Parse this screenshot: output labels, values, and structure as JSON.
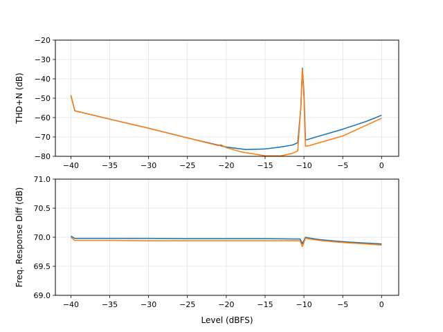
{
  "chart_data": [
    {
      "type": "line",
      "title": "",
      "xlabel": "",
      "ylabel": "THD+N (dB)",
      "xlim": [
        -42,
        2.2
      ],
      "ylim": [
        -80,
        -20
      ],
      "xticks": [
        -40,
        -35,
        -30,
        -25,
        -20,
        -15,
        -10,
        -5,
        0
      ],
      "yticks": [
        -80,
        -70,
        -60,
        -50,
        -40,
        -30,
        -20
      ],
      "xtick_labels": [
        "−40",
        "−35",
        "−30",
        "−25",
        "−20",
        "−15",
        "−10",
        "−5",
        "0"
      ],
      "ytick_labels": [
        "−80",
        "−70",
        "−60",
        "−50",
        "−40",
        "−30",
        "−20"
      ],
      "grid": true,
      "series": [
        {
          "color": "#1f77b4",
          "x": [
            -40,
            -39.5,
            -35,
            -30,
            -25,
            -20,
            -17.5,
            -15,
            -13,
            -11.5,
            -10.8,
            -10.4,
            -10.2,
            -10.0,
            -9.8,
            -9.5,
            -8,
            -5,
            -2,
            0
          ],
          "y": [
            -48.5,
            -56.5,
            -60.8,
            -65.5,
            -70.5,
            -75.2,
            -76.5,
            -76.2,
            -75.2,
            -74.2,
            -73.0,
            -55.0,
            -34.5,
            -47.0,
            -71.5,
            -71.3,
            -69.5,
            -66.0,
            -62.0,
            -58.8
          ]
        },
        {
          "color": "#ff7f0e",
          "x": [
            -40,
            -39.5,
            -35,
            -30,
            -25,
            -21,
            -20.7,
            -20,
            -18,
            -15,
            -13,
            -11.5,
            -10.8,
            -10.4,
            -10.2,
            -10.0,
            -9.8,
            -9.3,
            -8.5,
            -5,
            -2,
            0
          ],
          "y": [
            -48.5,
            -56.5,
            -60.8,
            -65.5,
            -70.5,
            -74.5,
            -74.0,
            -75.5,
            -77.8,
            -79.7,
            -79.8,
            -78.5,
            -77.2,
            -55.0,
            -35.0,
            -50.0,
            -74.8,
            -74.5,
            -73.5,
            -69.5,
            -64.0,
            -60.3
          ]
        }
      ]
    },
    {
      "type": "line",
      "title": "",
      "xlabel": "Level (dBFS)",
      "ylabel": "Freq. Response Diff (dB)",
      "xlim": [
        -42,
        2.2
      ],
      "ylim": [
        69.0,
        71.0
      ],
      "xticks": [
        -40,
        -35,
        -30,
        -25,
        -20,
        -15,
        -10,
        -5,
        0
      ],
      "yticks": [
        69.0,
        69.5,
        70.0,
        70.5,
        71.0
      ],
      "xtick_labels": [
        "−40",
        "−35",
        "−30",
        "−25",
        "−20",
        "−15",
        "−10",
        "−5",
        "0"
      ],
      "ytick_labels": [
        "69.0",
        "69.5",
        "70.0",
        "70.5",
        "71.0"
      ],
      "grid": true,
      "series": [
        {
          "color": "#1f77b4",
          "x": [
            -40,
            -39.5,
            -35,
            -30,
            -25,
            -20,
            -15,
            -11,
            -10.5,
            -10.2,
            -9.8,
            -9.5,
            -8,
            -6,
            -4,
            -2,
            0
          ],
          "y": [
            70.02,
            69.98,
            69.98,
            69.98,
            69.975,
            69.975,
            69.975,
            69.97,
            69.97,
            69.89,
            70.0,
            69.99,
            69.96,
            69.935,
            69.915,
            69.9,
            69.885
          ]
        },
        {
          "color": "#ff7f0e",
          "x": [
            -40,
            -39.5,
            -35,
            -30,
            -25,
            -20,
            -15,
            -11,
            -10.5,
            -10.2,
            -9.8,
            -9.5,
            -8,
            -6,
            -4,
            -2,
            0
          ],
          "y": [
            70.0,
            69.945,
            69.945,
            69.94,
            69.94,
            69.94,
            69.94,
            69.94,
            69.94,
            69.84,
            69.985,
            69.975,
            69.945,
            69.92,
            69.9,
            69.885,
            69.865
          ]
        }
      ]
    }
  ]
}
